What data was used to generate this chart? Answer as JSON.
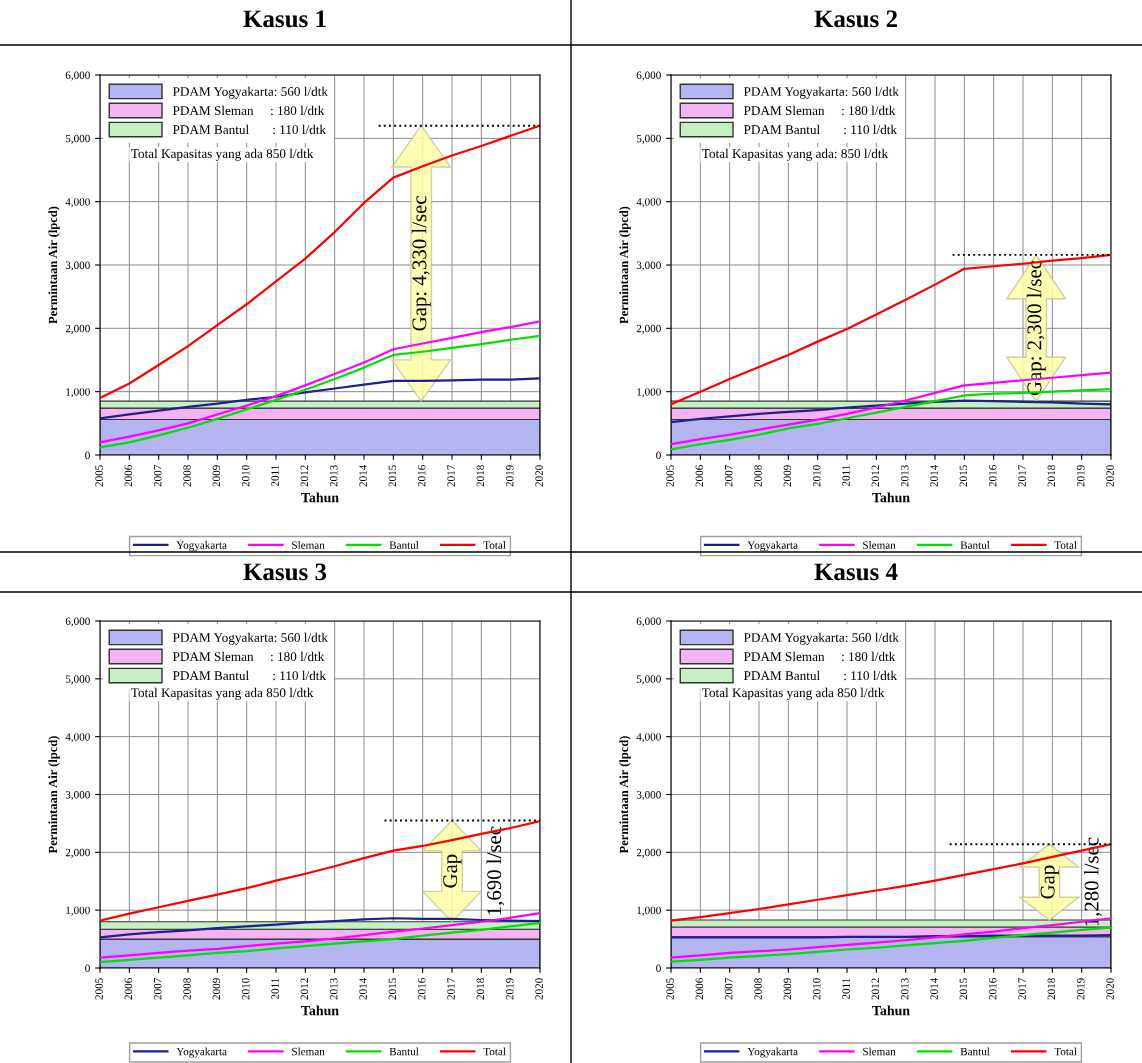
{
  "chart_data": [
    {
      "type": "line",
      "title": "Kasus 1",
      "xlabel": "Tahun",
      "ylabel": "Permintaan Air (lpcd)",
      "x": [
        2005,
        2006,
        2007,
        2008,
        2009,
        2010,
        2011,
        2012,
        2013,
        2014,
        2015,
        2016,
        2017,
        2018,
        2019,
        2020
      ],
      "xlim": [
        2005,
        2020
      ],
      "xticks": [
        2005,
        2006,
        2007,
        2008,
        2009,
        2010,
        2011,
        2012,
        2013,
        2014,
        2015,
        2016,
        2017,
        2018,
        2019,
        2020
      ],
      "ylim": [
        0,
        6000
      ],
      "yticks": [
        0,
        {
          "value": 1000,
          "label": "1,000"
        },
        {
          "value": 2000,
          "label": "2,000"
        },
        {
          "value": 3000,
          "label": "3,000"
        },
        {
          "value": 4000,
          "label": "4,000"
        },
        {
          "value": 5000,
          "label": "5,000"
        },
        {
          "value": 6000,
          "label": "6,000"
        }
      ],
      "grid": true,
      "legend": "bottom",
      "series": [
        {
          "name": "Yogyakarta",
          "color": "#1f1f8f",
          "values": [
            580,
            640,
            700,
            760,
            810,
            870,
            920,
            990,
            1050,
            1110,
            1170,
            1170,
            1180,
            1190,
            1190,
            1210
          ]
        },
        {
          "name": "Sleman",
          "color": "#ff00ff",
          "values": [
            200,
            290,
            390,
            500,
            640,
            780,
            930,
            1100,
            1280,
            1460,
            1670,
            1760,
            1850,
            1940,
            2020,
            2110
          ]
        },
        {
          "name": "Bantul",
          "color": "#00e000",
          "values": [
            120,
            200,
            310,
            430,
            570,
            720,
            870,
            1030,
            1200,
            1380,
            1580,
            1630,
            1690,
            1750,
            1820,
            1880
          ]
        },
        {
          "name": "Total",
          "color": "#ff0000",
          "values": [
            900,
            1130,
            1420,
            1720,
            2050,
            2380,
            2740,
            3100,
            3520,
            3980,
            4380,
            4560,
            4730,
            4880,
            5040,
            5200
          ]
        },
        {
          "type": "line",
          "color": "#000000",
          "line_style": "dotted",
          "x": [
            2014.5,
            2020
          ],
          "values": [
            5200,
            5200
          ]
        }
      ],
      "bands": [
        {
          "axis": "y",
          "from": 0,
          "to": 560,
          "label": "PDAM Yogyakarta: 560 l/dtk",
          "color": "#b4b4f0"
        },
        {
          "axis": "y",
          "from": 560,
          "to": 740,
          "label": "PDAM Sleman     : 180 l/dtk",
          "color": "#f4b4f4"
        },
        {
          "axis": "y",
          "from": 740,
          "to": 850,
          "label": "PDAM Bantul       : 110 l/dtk",
          "color": "#c4f0c4"
        }
      ],
      "annotations": [
        "Total Kapasitas yang ada 850 l/dtk",
        "Gap: 4,330 l/sec"
      ]
    },
    {
      "type": "line",
      "title": "Kasus 2",
      "xlabel": "Tahun",
      "ylabel": "Permintaan Air (lpcd)",
      "x": [
        2005,
        2006,
        2007,
        2008,
        2009,
        2010,
        2011,
        2012,
        2013,
        2014,
        2015,
        2016,
        2017,
        2018,
        2019,
        2020
      ],
      "xlim": [
        2005,
        2020
      ],
      "xticks": [
        2005,
        2006,
        2007,
        2008,
        2009,
        2010,
        2011,
        2012,
        2013,
        2014,
        2015,
        2016,
        2017,
        2018,
        2019,
        2020
      ],
      "ylim": [
        0,
        6000
      ],
      "yticks": [
        0,
        {
          "value": 1000,
          "label": "1,000"
        },
        {
          "value": 2000,
          "label": "2,000"
        },
        {
          "value": 3000,
          "label": "3,000"
        },
        {
          "value": 4000,
          "label": "4,000"
        },
        {
          "value": 5000,
          "label": "5,000"
        },
        {
          "value": 6000,
          "label": "6,000"
        }
      ],
      "grid": true,
      "legend": "bottom",
      "series": [
        {
          "name": "Yogyakarta",
          "color": "#1f1f8f",
          "values": [
            520,
            570,
            610,
            650,
            680,
            710,
            750,
            780,
            810,
            840,
            860,
            850,
            840,
            830,
            810,
            800
          ]
        },
        {
          "name": "Sleman",
          "color": "#ff00ff",
          "values": [
            170,
            250,
            320,
            400,
            480,
            560,
            650,
            750,
            860,
            980,
            1100,
            1140,
            1180,
            1220,
            1260,
            1300
          ]
        },
        {
          "name": "Bantul",
          "color": "#00e000",
          "values": [
            90,
            170,
            240,
            320,
            420,
            490,
            580,
            670,
            760,
            850,
            940,
            970,
            980,
            1000,
            1020,
            1040
          ]
        },
        {
          "name": "Total",
          "color": "#ff0000",
          "values": [
            800,
            1000,
            1200,
            1390,
            1580,
            1790,
            1990,
            2220,
            2450,
            2690,
            2940,
            2980,
            3020,
            3070,
            3110,
            3160
          ]
        },
        {
          "type": "line",
          "color": "#000000",
          "line_style": "dotted",
          "x": [
            2014.6,
            2020
          ],
          "values": [
            3160,
            3160
          ]
        }
      ],
      "bands": [
        {
          "axis": "y",
          "from": 0,
          "to": 560,
          "label": "PDAM Yogyakarta: 560 l/dtk",
          "color": "#b4b4f0"
        },
        {
          "axis": "y",
          "from": 560,
          "to": 740,
          "label": "PDAM Sleman     : 180 l/dtk",
          "color": "#f4b4f4"
        },
        {
          "axis": "y",
          "from": 740,
          "to": 850,
          "label": "PDAM Bantul       : 110 l/dtk",
          "color": "#c4f0c4"
        }
      ],
      "annotations": [
        "Total Kapasitas yang ada: 850 l/dtk",
        "Gap: 2,300 l/sec"
      ]
    },
    {
      "type": "line",
      "title": "Kasus 3",
      "xlabel": "Tahun",
      "ylabel": "Permintaan Air (lpcd)",
      "x": [
        2005,
        2006,
        2007,
        2008,
        2009,
        2010,
        2011,
        2012,
        2013,
        2014,
        2015,
        2016,
        2017,
        2018,
        2019,
        2020
      ],
      "xlim": [
        2005,
        2020
      ],
      "xticks": [
        2005,
        2006,
        2007,
        2008,
        2009,
        2010,
        2011,
        2012,
        2013,
        2014,
        2015,
        2016,
        2017,
        2018,
        2019,
        2020
      ],
      "ylim": [
        0,
        6000
      ],
      "yticks": [
        0,
        {
          "value": 1000,
          "label": "1,000"
        },
        {
          "value": 2000,
          "label": "2,000"
        },
        {
          "value": 3000,
          "label": "3,000"
        },
        {
          "value": 4000,
          "label": "4,000"
        },
        {
          "value": 5000,
          "label": "5,000"
        },
        {
          "value": 6000,
          "label": "6,000"
        }
      ],
      "grid": true,
      "legend": "bottom",
      "series": [
        {
          "name": "Yogyakarta",
          "color": "#1f1f8f",
          "values": [
            530,
            580,
            620,
            650,
            690,
            720,
            750,
            790,
            810,
            840,
            860,
            850,
            850,
            830,
            820,
            810
          ]
        },
        {
          "name": "Sleman",
          "color": "#ff00ff",
          "values": [
            180,
            220,
            260,
            300,
            330,
            380,
            420,
            460,
            510,
            570,
            630,
            680,
            740,
            800,
            870,
            950
          ]
        },
        {
          "name": "Bantul",
          "color": "#00e000",
          "values": [
            100,
            140,
            180,
            220,
            260,
            290,
            340,
            380,
            420,
            460,
            500,
            560,
            610,
            660,
            720,
            780
          ]
        },
        {
          "name": "Total",
          "color": "#ff0000",
          "values": [
            820,
            940,
            1050,
            1160,
            1270,
            1380,
            1510,
            1630,
            1760,
            1900,
            2030,
            2110,
            2210,
            2320,
            2420,
            2540
          ]
        },
        {
          "type": "line",
          "color": "#000000",
          "line_style": "dotted",
          "x": [
            2014.7,
            2020
          ],
          "values": [
            2550,
            2550
          ]
        }
      ],
      "bands": [
        {
          "axis": "y",
          "from": 0,
          "to": 500,
          "label": "PDAM Yogyakarta: 560 l/dtk",
          "color": "#b4b4f0"
        },
        {
          "axis": "y",
          "from": 500,
          "to": 670,
          "label": "PDAM Sleman     : 180 l/dtk",
          "color": "#f4b4f4"
        },
        {
          "axis": "y",
          "from": 670,
          "to": 800,
          "label": "PDAM Bantul       : 110 l/dtk",
          "color": "#c4f0c4"
        }
      ],
      "annotations": [
        "Total Kapasitas yang ada 850 l/dtk",
        "Gap",
        "1,690 l/sec"
      ]
    },
    {
      "type": "line",
      "title": "Kasus 4",
      "xlabel": "Tahun",
      "ylabel": "Permintaan Air (lpcd)",
      "x": [
        2005,
        2006,
        2007,
        2008,
        2009,
        2010,
        2011,
        2012,
        2013,
        2014,
        2015,
        2016,
        2017,
        2018,
        2019,
        2020
      ],
      "xlim": [
        2005,
        2020
      ],
      "xticks": [
        2005,
        2006,
        2007,
        2008,
        2009,
        2010,
        2011,
        2012,
        2013,
        2014,
        2015,
        2016,
        2017,
        2018,
        2019,
        2020
      ],
      "ylim": [
        0,
        6000
      ],
      "yticks": [
        0,
        {
          "value": 1000,
          "label": "1,000"
        },
        {
          "value": 2000,
          "label": "2,000"
        },
        {
          "value": 3000,
          "label": "3,000"
        },
        {
          "value": 4000,
          "label": "4,000"
        },
        {
          "value": 5000,
          "label": "5,000"
        },
        {
          "value": 6000,
          "label": "6,000"
        }
      ],
      "grid": true,
      "legend": "bottom",
      "series": [
        {
          "name": "Yogyakarta",
          "color": "#1f1f8f",
          "values": [
            530,
            530,
            530,
            530,
            530,
            530,
            540,
            540,
            540,
            550,
            550,
            560,
            560,
            560,
            560,
            570
          ]
        },
        {
          "name": "Sleman",
          "color": "#ff00ff",
          "values": [
            180,
            220,
            260,
            290,
            320,
            360,
            400,
            440,
            480,
            530,
            580,
            630,
            690,
            740,
            800,
            860
          ]
        },
        {
          "name": "Bantul",
          "color": "#00e000",
          "values": [
            110,
            140,
            180,
            210,
            240,
            280,
            320,
            350,
            390,
            430,
            470,
            520,
            570,
            610,
            660,
            700
          ]
        },
        {
          "name": "Total",
          "color": "#ff0000",
          "values": [
            820,
            880,
            950,
            1020,
            1100,
            1180,
            1260,
            1340,
            1420,
            1510,
            1610,
            1710,
            1810,
            1920,
            2030,
            2140
          ]
        },
        {
          "type": "line",
          "color": "#000000",
          "line_style": "dotted",
          "x": [
            2014.5,
            2020
          ],
          "values": [
            2140,
            2140
          ]
        }
      ],
      "bands": [
        {
          "axis": "y",
          "from": 0,
          "to": 540,
          "label": "PDAM Yogyakarta: 560 l/dtk",
          "color": "#b4b4f0"
        },
        {
          "axis": "y",
          "from": 540,
          "to": 710,
          "label": "PDAM Sleman     : 180 l/dtk",
          "color": "#f4b4f4"
        },
        {
          "axis": "y",
          "from": 710,
          "to": 830,
          "label": "PDAM Bantul       : 110 l/dtk",
          "color": "#c4f0c4"
        }
      ],
      "annotations": [
        "Total Kapasitas yang ada 850 l/dtk",
        "Gap",
        "1,280 l/sec"
      ]
    }
  ]
}
